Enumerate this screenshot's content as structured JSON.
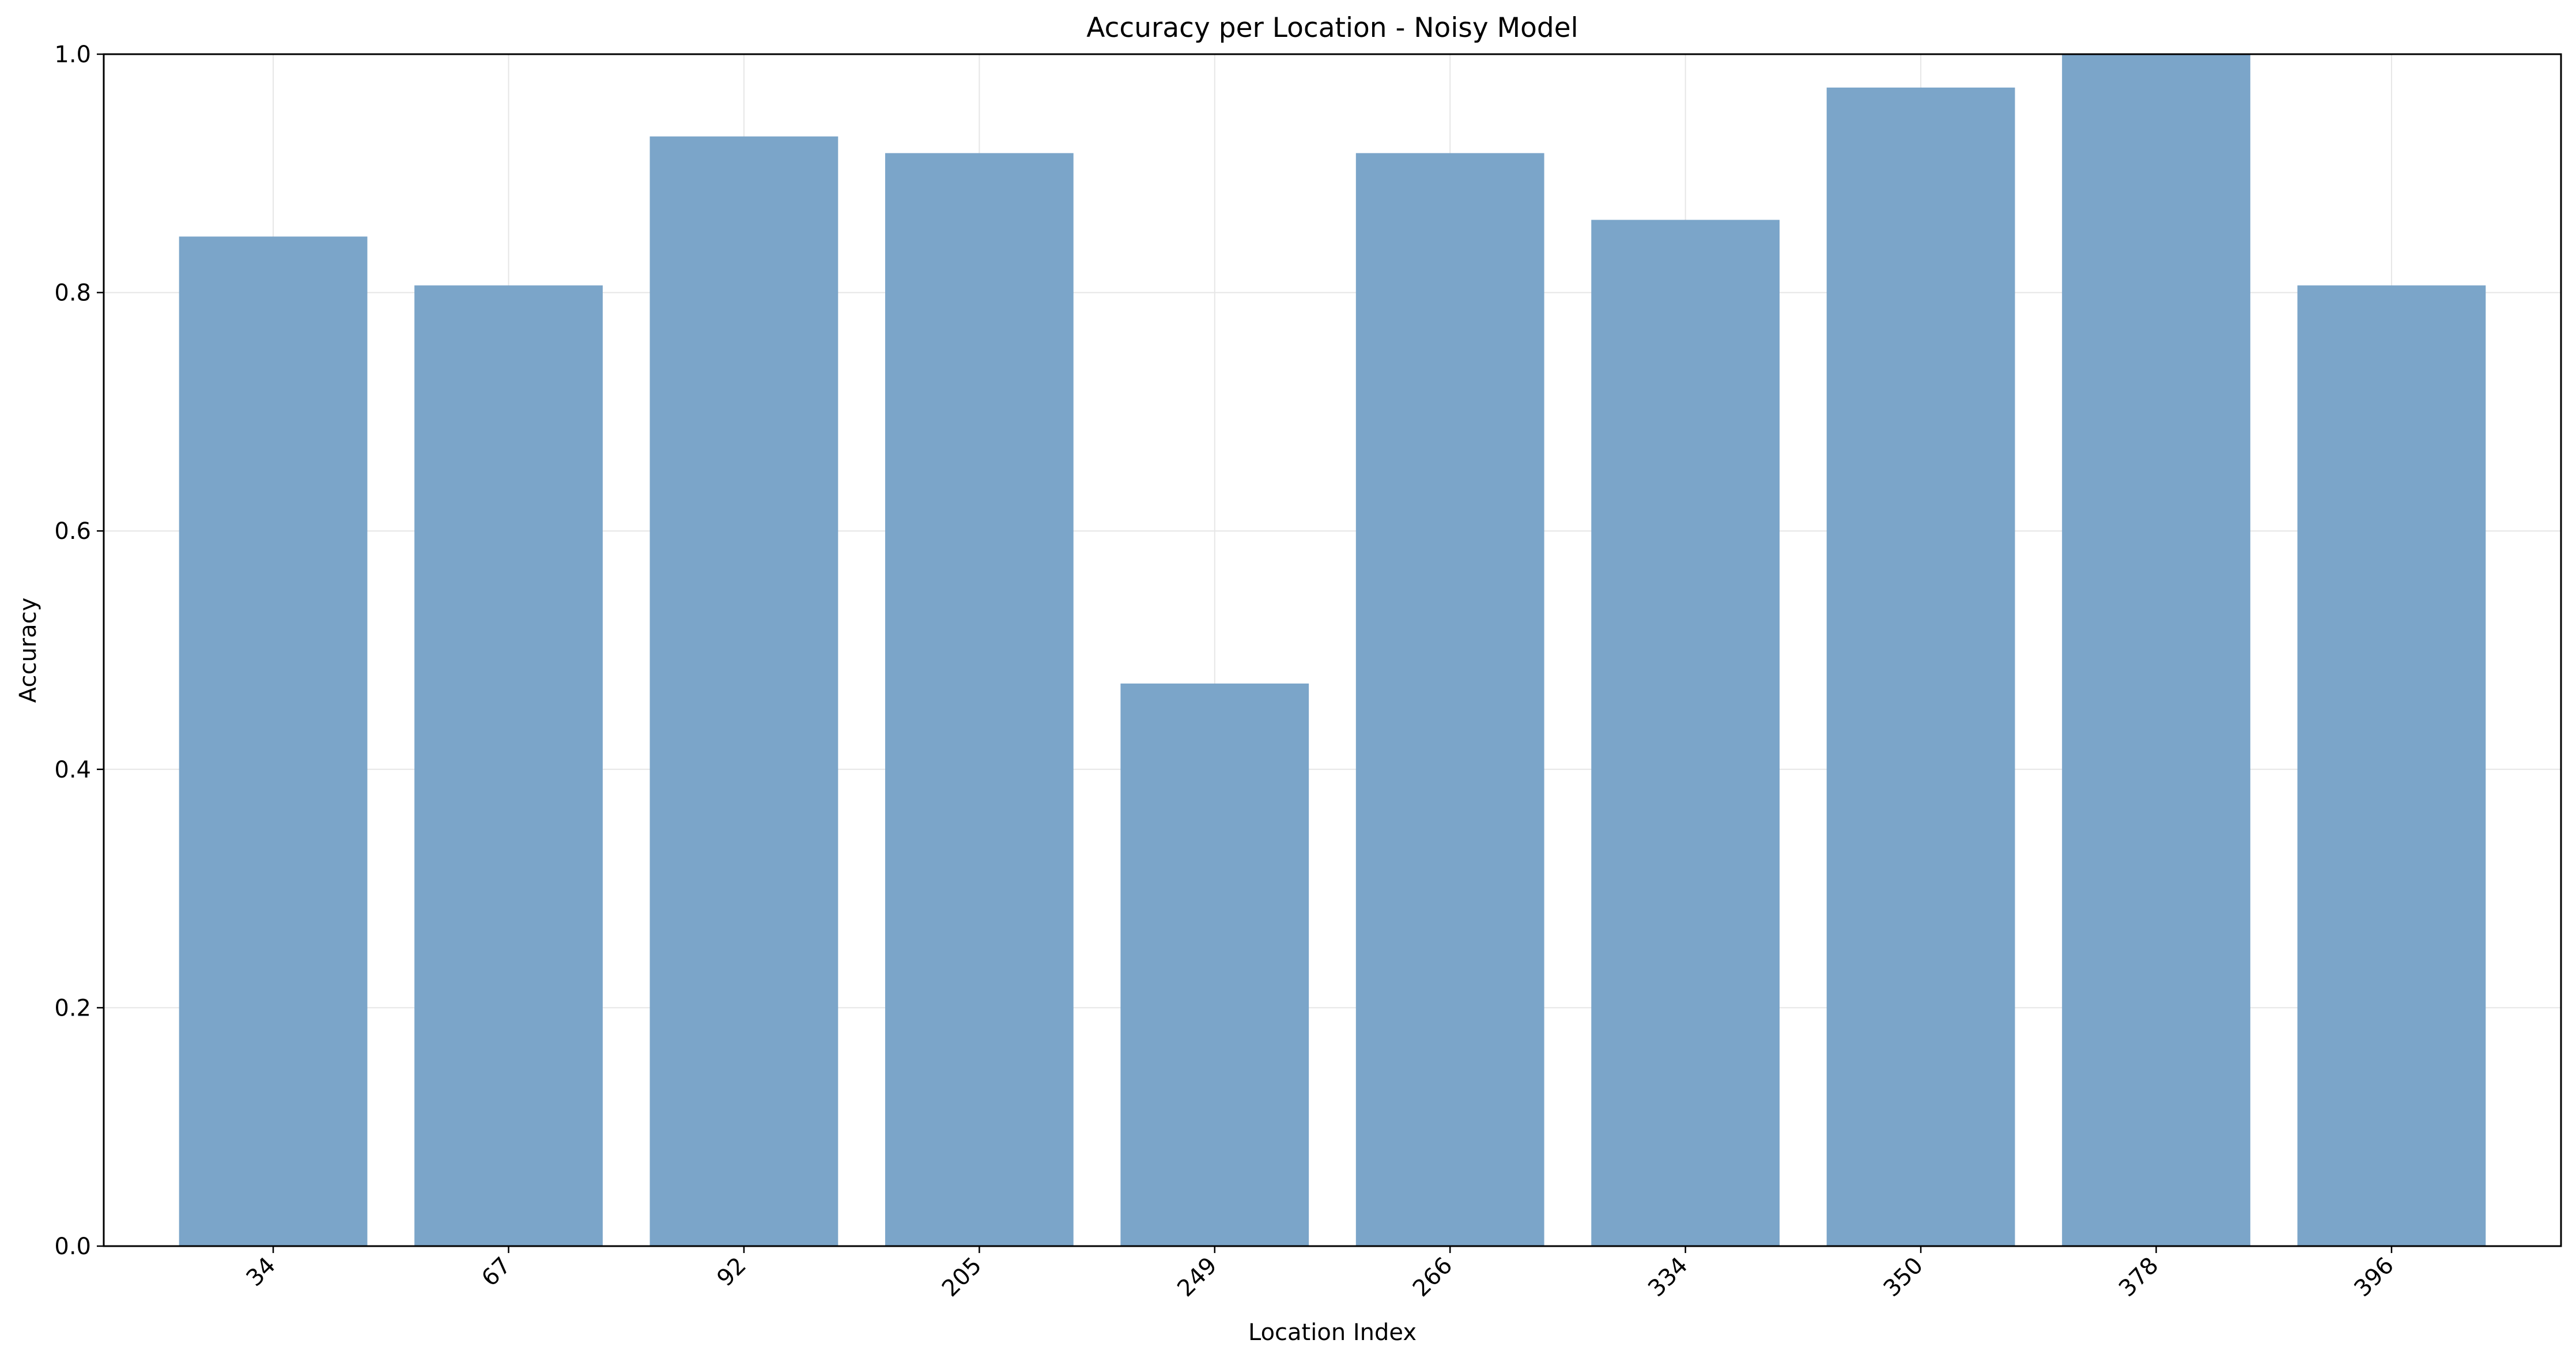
{
  "chart_data": {
    "type": "bar",
    "title": "Accuracy per Location - Noisy Model",
    "xlabel": "Location Index",
    "ylabel": "Accuracy",
    "categories": [
      "34",
      "67",
      "92",
      "205",
      "249",
      "266",
      "334",
      "350",
      "378",
      "396"
    ],
    "values": [
      0.847,
      0.806,
      0.931,
      0.917,
      0.472,
      0.917,
      0.861,
      0.972,
      1.0,
      0.806
    ],
    "ylim": [
      0,
      1.0
    ],
    "yticks": [
      0.0,
      0.2,
      0.4,
      0.6,
      0.8,
      1.0
    ],
    "ytick_labels": [
      "0.0",
      "0.2",
      "0.4",
      "0.6",
      "0.8",
      "1.0"
    ],
    "grid": true,
    "legend": "none",
    "colors": {
      "bar": "#7ba5c9",
      "grid": "#e6e6e6",
      "axis": "#000000"
    }
  }
}
